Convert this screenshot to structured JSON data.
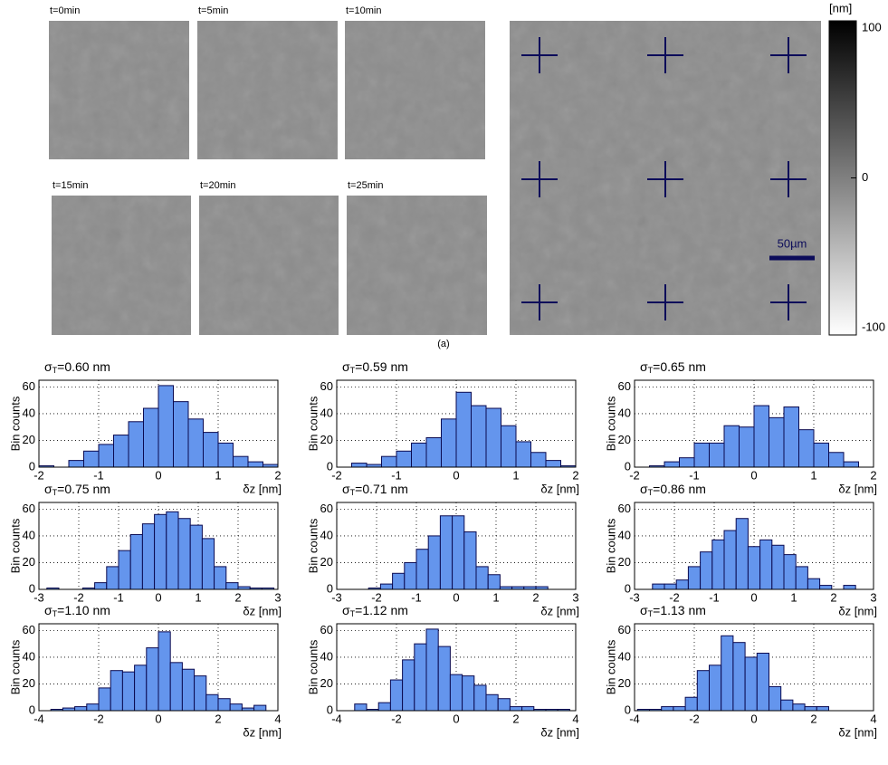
{
  "images": {
    "labels": [
      "t=0min",
      "t=5min",
      "t=10min",
      "t=15min",
      "t=20min",
      "t=25min"
    ],
    "scale_bar": "50µm",
    "caption": "(a)"
  },
  "colorbar": {
    "title": "[nm]",
    "lim": [
      -100,
      100
    ],
    "ticks": [
      -100,
      0,
      100
    ]
  },
  "chart_data": [
    {
      "type": "histogram",
      "title": [
        "σ",
        "T",
        "=0.60 nm"
      ],
      "xlabel": "δz [nm]",
      "ylabel": "Bin counts",
      "color": "#6495ed",
      "bins": [
        -2,
        -1.75,
        -1.5,
        -1.25,
        -1,
        -0.75,
        -0.5,
        -0.25,
        0,
        0.25,
        0.5,
        0.75,
        1,
        1.25,
        1.5,
        1.75,
        2
      ],
      "values": [
        1,
        0,
        5,
        12,
        17,
        24,
        34,
        44,
        61,
        49,
        36,
        26,
        18,
        8,
        4,
        2
      ],
      "xlim": [
        -2,
        2
      ],
      "xticks": [
        -2,
        -1,
        0,
        1,
        2
      ],
      "ylim": [
        0,
        65
      ],
      "yticks": [
        0,
        20,
        40,
        60
      ],
      "grid": true
    },
    {
      "type": "histogram",
      "title": [
        "σ",
        "T",
        "=0.59 nm"
      ],
      "xlabel": "δz [nm]",
      "ylabel": "Bin counts",
      "color": "#6495ed",
      "bins": [
        -1.75,
        -1.5,
        -1.25,
        -1,
        -0.75,
        -0.5,
        -0.25,
        0,
        0.25,
        0.5,
        0.75,
        1,
        1.25,
        1.5,
        1.75,
        2
      ],
      "values": [
        3,
        2,
        8,
        12,
        18,
        22,
        36,
        56,
        46,
        44,
        31,
        19,
        11,
        5,
        1
      ],
      "xlim": [
        -2,
        2
      ],
      "xticks": [
        -2,
        -1,
        0,
        1,
        2
      ],
      "ylim": [
        0,
        65
      ],
      "yticks": [
        0,
        20,
        40,
        60
      ],
      "grid": true
    },
    {
      "type": "histogram",
      "title": [
        "σ",
        "T",
        "=0.65 nm"
      ],
      "xlabel": "δz [nm]",
      "ylabel": "Bin counts",
      "color": "#6495ed",
      "bins": [
        -1.75,
        -1.5,
        -1.25,
        -1,
        -0.75,
        -0.5,
        -0.25,
        0,
        0.25,
        0.5,
        0.75,
        1,
        1.25,
        1.5,
        1.75
      ],
      "values": [
        1,
        4,
        7,
        18,
        18,
        31,
        30,
        46,
        37,
        45,
        28,
        18,
        11,
        4
      ],
      "xlim": [
        -2,
        2
      ],
      "xticks": [
        -2,
        -1,
        0,
        1,
        2
      ],
      "ylim": [
        0,
        65
      ],
      "yticks": [
        0,
        20,
        40,
        60
      ],
      "grid": true
    },
    {
      "type": "histogram",
      "title": [
        "σ",
        "T",
        "=0.75 nm"
      ],
      "xlabel": "δz [nm]",
      "ylabel": "Bin counts",
      "color": "#6495ed",
      "bins": [
        -2.8,
        -2.5,
        -2.2,
        -1.9,
        -1.6,
        -1.3,
        -1,
        -0.7,
        -0.4,
        -0.1,
        0.2,
        0.5,
        0.8,
        1.1,
        1.4,
        1.7,
        2,
        2.3,
        2.6,
        2.9
      ],
      "values": [
        1,
        0,
        0,
        1,
        5,
        17,
        29,
        41,
        49,
        56,
        58,
        53,
        48,
        38,
        17,
        5,
        2,
        1,
        1
      ],
      "xlim": [
        -3,
        3
      ],
      "xticks": [
        -3,
        -2,
        -1,
        0,
        1,
        2,
        3
      ],
      "ylim": [
        0,
        65
      ],
      "yticks": [
        0,
        20,
        40,
        60
      ],
      "grid": true
    },
    {
      "type": "histogram",
      "title": [
        "σ",
        "T",
        "=0.71 nm"
      ],
      "xlabel": "δz [nm]",
      "ylabel": "Bin counts",
      "color": "#6495ed",
      "bins": [
        -2.2,
        -1.9,
        -1.6,
        -1.3,
        -1,
        -0.7,
        -0.4,
        -0.1,
        0.2,
        0.5,
        0.8,
        1.1,
        1.4,
        1.7,
        2,
        2.3
      ],
      "values": [
        1,
        4,
        12,
        20,
        30,
        40,
        55,
        55,
        43,
        17,
        11,
        2,
        2,
        2,
        2
      ],
      "xlim": [
        -3,
        3
      ],
      "xticks": [
        -3,
        -2,
        -1,
        0,
        1,
        2,
        3
      ],
      "ylim": [
        0,
        65
      ],
      "yticks": [
        0,
        20,
        40,
        60
      ],
      "grid": true
    },
    {
      "type": "histogram",
      "title": [
        "σ",
        "T",
        "=0.86 nm"
      ],
      "xlabel": "δz [nm]",
      "ylabel": "Bin counts",
      "color": "#6495ed",
      "bins": [
        -2.55,
        -2.25,
        -1.95,
        -1.65,
        -1.35,
        -1.05,
        -0.75,
        -0.45,
        -0.15,
        0.15,
        0.45,
        0.75,
        1.05,
        1.35,
        1.65,
        1.95,
        2.25,
        2.55
      ],
      "values": [
        4,
        4,
        7,
        17,
        28,
        37,
        44,
        53,
        32,
        37,
        33,
        26,
        17,
        8,
        3,
        0,
        3
      ],
      "xlim": [
        -3,
        3
      ],
      "xticks": [
        -3,
        -2,
        -1,
        0,
        1,
        2,
        3
      ],
      "ylim": [
        0,
        65
      ],
      "yticks": [
        0,
        20,
        40,
        60
      ],
      "grid": true
    },
    {
      "type": "histogram",
      "title": [
        "σ",
        "T",
        "=1.10 nm"
      ],
      "xlabel": "δz [nm]",
      "ylabel": "Bin counts",
      "color": "#6495ed",
      "bins": [
        -3.6,
        -3.2,
        -2.8,
        -2.4,
        -2,
        -1.6,
        -1.2,
        -0.8,
        -0.4,
        0,
        0.4,
        0.8,
        1.2,
        1.6,
        2,
        2.4,
        2.8,
        3.2,
        3.6
      ],
      "values": [
        1,
        2,
        3,
        5,
        17,
        30,
        29,
        34,
        47,
        59,
        36,
        31,
        26,
        12,
        9,
        5,
        2,
        4
      ],
      "xlim": [
        -4,
        4
      ],
      "xticks": [
        -4,
        -2,
        0,
        2,
        4
      ],
      "ylim": [
        0,
        65
      ],
      "yticks": [
        0,
        20,
        40,
        60
      ],
      "grid": true
    },
    {
      "type": "histogram",
      "title": [
        "σ",
        "T",
        "=1.12 nm"
      ],
      "xlabel": "δz [nm]",
      "ylabel": "Bin counts",
      "color": "#6495ed",
      "bins": [
        -3.4,
        -3,
        -2.6,
        -2.2,
        -1.8,
        -1.4,
        -1,
        -0.6,
        -0.2,
        0.2,
        0.6,
        1,
        1.4,
        1.8,
        2.2,
        2.6,
        3,
        3.4,
        3.8
      ],
      "values": [
        5,
        1,
        6,
        23,
        38,
        50,
        61,
        48,
        27,
        26,
        19,
        12,
        9,
        3,
        3,
        1,
        1,
        1
      ],
      "xlim": [
        -4,
        4
      ],
      "xticks": [
        -4,
        -2,
        0,
        2,
        4
      ],
      "ylim": [
        0,
        65
      ],
      "yticks": [
        0,
        20,
        40,
        60
      ],
      "grid": true
    },
    {
      "type": "histogram",
      "title": [
        "σ",
        "T",
        "=1.13 nm"
      ],
      "xlabel": "δz [nm]",
      "ylabel": "Bin counts",
      "color": "#6495ed",
      "bins": [
        -3.9,
        -3.5,
        -3.1,
        -2.7,
        -2.3,
        -1.9,
        -1.5,
        -1.1,
        -0.7,
        -0.3,
        0.1,
        0.5,
        0.9,
        1.3,
        1.7,
        2.1,
        2.5,
        2.9
      ],
      "values": [
        1,
        1,
        3,
        3,
        10,
        30,
        34,
        56,
        51,
        40,
        43,
        18,
        8,
        5,
        3,
        3,
        0
      ],
      "xlim": [
        -4,
        4
      ],
      "xticks": [
        -4,
        -2,
        0,
        2,
        4
      ],
      "ylim": [
        0,
        65
      ],
      "yticks": [
        0,
        20,
        40,
        60
      ],
      "grid": true
    }
  ]
}
